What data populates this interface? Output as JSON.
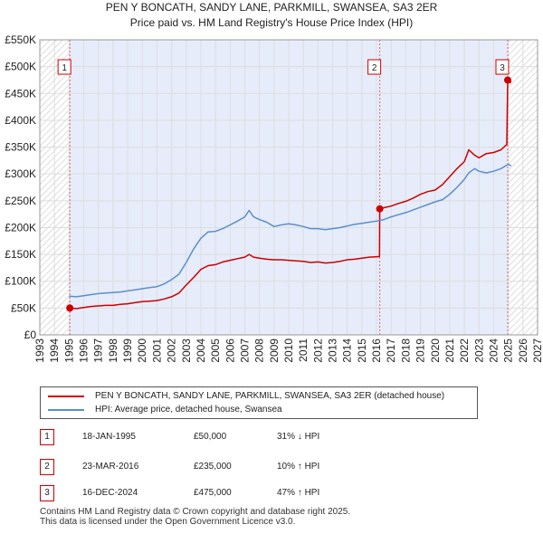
{
  "title_line1": "PEN Y BONCATH, SANDY LANE, PARKMILL, SWANSEA, SA3 2ER",
  "title_line2": "Price paid vs. HM Land Registry's House Price Index (HPI)",
  "colors": {
    "property": "#cc0000",
    "hpi": "#5b8fcc",
    "hatch": "#c8c8c8",
    "shade": "#e6ecfa",
    "grid": "#dddddd"
  },
  "chart_data": {
    "type": "line",
    "xlim": [
      1993,
      2027
    ],
    "ylim": [
      0,
      550000
    ],
    "x_ticks": [
      1993,
      1994,
      1995,
      1996,
      1997,
      1998,
      1999,
      2000,
      2001,
      2002,
      2003,
      2004,
      2005,
      2006,
      2007,
      2008,
      2009,
      2010,
      2011,
      2012,
      2013,
      2014,
      2015,
      2016,
      2017,
      2018,
      2019,
      2020,
      2021,
      2022,
      2023,
      2024,
      2025,
      2026,
      2027
    ],
    "y_ticks": [
      {
        "value": 0,
        "label": "£0"
      },
      {
        "value": 50000,
        "label": "£50K"
      },
      {
        "value": 100000,
        "label": "£100K"
      },
      {
        "value": 150000,
        "label": "£150K"
      },
      {
        "value": 200000,
        "label": "£200K"
      },
      {
        "value": 250000,
        "label": "£250K"
      },
      {
        "value": 300000,
        "label": "£300K"
      },
      {
        "value": 350000,
        "label": "£350K"
      },
      {
        "value": 400000,
        "label": "£400K"
      },
      {
        "value": 450000,
        "label": "£450K"
      },
      {
        "value": 500000,
        "label": "£500K"
      },
      {
        "value": 550000,
        "label": "£550K"
      }
    ],
    "hatch_before": 1995.05,
    "hatch_after": 2025.0,
    "shaded_range": [
      1995.05,
      2024.96
    ],
    "series": [
      {
        "name": "PEN Y BONCATH, SANDY LANE, PARKMILL, SWANSEA, SA3 2ER (detached house)",
        "color": "#cc0000",
        "x": [
          1995.05,
          1995.5,
          1996,
          1996.5,
          1997,
          1997.5,
          1998,
          1998.5,
          1999,
          1999.5,
          2000,
          2000.5,
          2001,
          2001.5,
          2002,
          2002.5,
          2003,
          2003.5,
          2004,
          2004.5,
          2005,
          2005.5,
          2006,
          2006.5,
          2007,
          2007.3,
          2007.6,
          2008,
          2008.5,
          2009,
          2009.5,
          2010,
          2010.5,
          2011,
          2011.5,
          2012,
          2012.5,
          2013,
          2013.5,
          2014,
          2014.5,
          2015,
          2015.5,
          2016.2,
          2016.22,
          2016.5,
          2017,
          2017.5,
          2018,
          2018.5,
          2019,
          2019.5,
          2020,
          2020.5,
          2021,
          2021.5,
          2022,
          2022.3,
          2022.7,
          2023,
          2023.5,
          2024,
          2024.5,
          2024.9,
          2024.96,
          2025.1,
          2025.2
        ],
        "y": [
          50000,
          49000,
          51000,
          53000,
          54000,
          55000,
          55000,
          57000,
          58000,
          60000,
          62000,
          63000,
          64000,
          67000,
          71000,
          78000,
          93000,
          107000,
          122000,
          129000,
          131000,
          136000,
          139000,
          142000,
          145000,
          150000,
          145000,
          143000,
          141000,
          140000,
          140000,
          139000,
          138000,
          137000,
          135000,
          136000,
          134000,
          135000,
          137000,
          140000,
          141000,
          143000,
          145000,
          146000,
          235000,
          237000,
          240000,
          245000,
          249000,
          255000,
          262000,
          267000,
          270000,
          280000,
          295000,
          310000,
          323000,
          345000,
          335000,
          330000,
          338000,
          340000,
          345000,
          355000,
          475000,
          470000,
          472000
        ]
      },
      {
        "name": "HPI: Average price, detached house, Swansea",
        "color": "#5b8fcc",
        "x": [
          1995,
          1995.5,
          1996,
          1996.5,
          1997,
          1997.5,
          1998,
          1998.5,
          1999,
          1999.5,
          2000,
          2000.5,
          2001,
          2001.5,
          2002,
          2002.5,
          2003,
          2003.5,
          2004,
          2004.5,
          2005,
          2005.5,
          2006,
          2006.5,
          2007,
          2007.3,
          2007.6,
          2008,
          2008.5,
          2009,
          2009.5,
          2010,
          2010.5,
          2011,
          2011.5,
          2012,
          2012.5,
          2013,
          2013.5,
          2014,
          2014.5,
          2015,
          2015.5,
          2016,
          2016.5,
          2017,
          2017.5,
          2018,
          2018.5,
          2019,
          2019.5,
          2020,
          2020.5,
          2021,
          2021.5,
          2022,
          2022.3,
          2022.7,
          2023,
          2023.5,
          2024,
          2024.5,
          2025,
          2025.2
        ],
        "y": [
          72000,
          71000,
          73000,
          75000,
          77000,
          78000,
          79000,
          80000,
          82000,
          84000,
          86000,
          88000,
          90000,
          95000,
          103000,
          113000,
          135000,
          160000,
          180000,
          192000,
          193000,
          198000,
          205000,
          212000,
          220000,
          232000,
          220000,
          215000,
          210000,
          202000,
          205000,
          207000,
          205000,
          202000,
          198000,
          198000,
          196000,
          198000,
          200000,
          203000,
          206000,
          208000,
          210000,
          212000,
          215000,
          220000,
          224000,
          228000,
          233000,
          238000,
          243000,
          248000,
          252000,
          262000,
          275000,
          290000,
          302000,
          310000,
          305000,
          302000,
          305000,
          310000,
          318000,
          315000
        ]
      }
    ],
    "sales": [
      {
        "n": "1",
        "x": 1995.05,
        "value": 50000,
        "date": "18-JAN-1995",
        "price": "£50,000",
        "hpi": "31% ↓ HPI"
      },
      {
        "n": "2",
        "x": 2016.22,
        "value": 235000,
        "date": "23-MAR-2016",
        "price": "£235,000",
        "hpi": "10% ↑ HPI"
      },
      {
        "n": "3",
        "x": 2024.96,
        "value": 475000,
        "date": "16-DEC-2024",
        "price": "£475,000",
        "hpi": "47% ↑ HPI"
      }
    ]
  },
  "legend": {
    "property_label": "PEN Y BONCATH, SANDY LANE, PARKMILL, SWANSEA, SA3 2ER (detached house)",
    "hpi_label": "HPI: Average price, detached house, Swansea"
  },
  "footer": {
    "line1": "Contains HM Land Registry data © Crown copyright and database right 2025.",
    "line2": "This data is licensed under the Open Government Licence v3.0."
  }
}
